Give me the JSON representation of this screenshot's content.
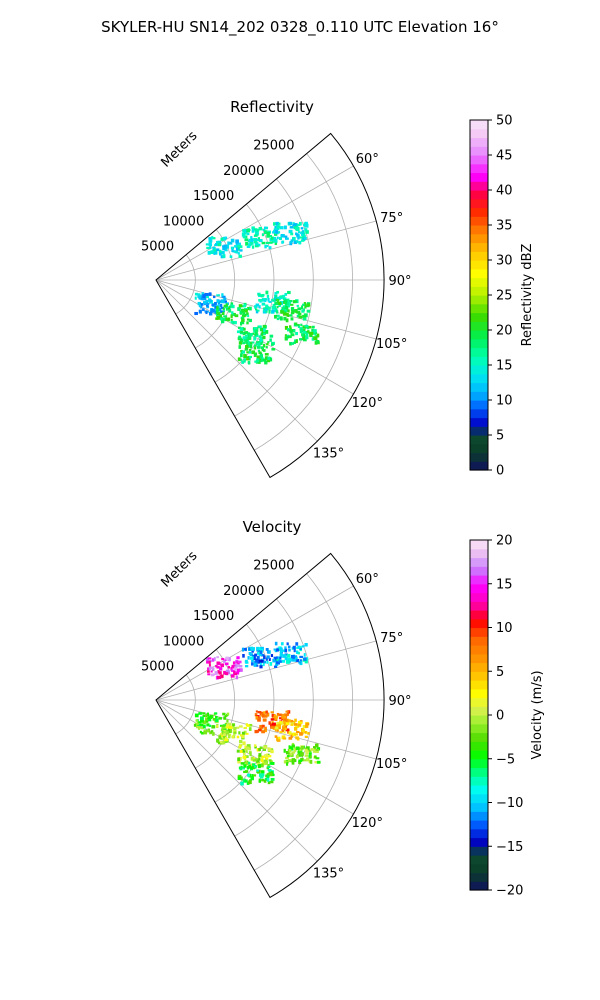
{
  "figure": {
    "suptitle": "SKYLER-HU  SN14_202  0328_0.110 UTC Elevation 16°"
  },
  "chart_data": [
    {
      "type": "heatmap",
      "projection": "polar-sector",
      "title": "Reflectivity",
      "radial_axis_label": "Meters",
      "radial_ticks": [
        5000,
        10000,
        15000,
        20000,
        25000
      ],
      "radial_tick_labels": [
        "5000",
        "10000",
        "15000",
        "20000",
        "25000"
      ],
      "rlim": [
        0,
        29000
      ],
      "angle_ticks_deg": [
        60,
        75,
        90,
        105,
        120,
        135
      ],
      "angle_tick_labels": [
        "60°",
        "75°",
        "90°",
        "105°",
        "120°",
        "135°"
      ],
      "angle_range_deg": [
        50,
        150
      ],
      "grid": true,
      "colorbar": {
        "label": "Reflectivity dBZ",
        "vmin": 0,
        "vmax": 50,
        "ticks": [
          0,
          5,
          10,
          15,
          20,
          25,
          30,
          35,
          40,
          45,
          50
        ],
        "tick_labels": [
          "0",
          "5",
          "10",
          "15",
          "20",
          "25",
          "30",
          "35",
          "40",
          "45",
          "50"
        ],
        "placement": "right"
      },
      "echo_clusters": [
        {
          "range_m": 9500,
          "angle_deg": 63,
          "value": 14
        },
        {
          "range_m": 14200,
          "angle_deg": 67,
          "value": 16
        },
        {
          "range_m": 18000,
          "angle_deg": 70,
          "value": 14
        },
        {
          "range_m": 7500,
          "angle_deg": 112,
          "value": 12
        },
        {
          "range_m": 10500,
          "angle_deg": 113,
          "value": 19
        },
        {
          "range_m": 14800,
          "angle_deg": 100,
          "value": 15
        },
        {
          "range_m": 17500,
          "angle_deg": 102,
          "value": 19
        },
        {
          "range_m": 14200,
          "angle_deg": 119,
          "value": 18
        },
        {
          "range_m": 15500,
          "angle_deg": 126,
          "value": 19
        },
        {
          "range_m": 19500,
          "angle_deg": 110,
          "value": 19
        }
      ]
    },
    {
      "type": "heatmap",
      "projection": "polar-sector",
      "title": "Velocity",
      "radial_axis_label": "Meters",
      "radial_ticks": [
        5000,
        10000,
        15000,
        20000,
        25000
      ],
      "radial_tick_labels": [
        "5000",
        "10000",
        "15000",
        "20000",
        "25000"
      ],
      "rlim": [
        0,
        29000
      ],
      "angle_ticks_deg": [
        60,
        75,
        90,
        105,
        120,
        135
      ],
      "angle_tick_labels": [
        "60°",
        "75°",
        "90°",
        "105°",
        "120°",
        "135°"
      ],
      "angle_range_deg": [
        50,
        150
      ],
      "grid": true,
      "colorbar": {
        "label": "Velocity (m/s)",
        "vmin": -20,
        "vmax": 20,
        "ticks": [
          -20,
          -15,
          -10,
          -5,
          0,
          5,
          10,
          15,
          20
        ],
        "tick_labels": [
          "−20",
          "−15",
          "−10",
          "−5",
          "0",
          "5",
          "10",
          "15",
          "20"
        ],
        "placement": "right"
      },
      "echo_clusters": [
        {
          "range_m": 9500,
          "angle_deg": 63,
          "value": 15
        },
        {
          "range_m": 14200,
          "angle_deg": 67,
          "value": -11
        },
        {
          "range_m": 18000,
          "angle_deg": 70,
          "value": -10
        },
        {
          "range_m": 7500,
          "angle_deg": 112,
          "value": -3
        },
        {
          "range_m": 10500,
          "angle_deg": 113,
          "value": 0
        },
        {
          "range_m": 14800,
          "angle_deg": 100,
          "value": 8
        },
        {
          "range_m": 17500,
          "angle_deg": 102,
          "value": 4
        },
        {
          "range_m": 14200,
          "angle_deg": 119,
          "value": 0
        },
        {
          "range_m": 15500,
          "angle_deg": 126,
          "value": -5
        },
        {
          "range_m": 19500,
          "angle_deg": 110,
          "value": -2
        }
      ]
    }
  ]
}
